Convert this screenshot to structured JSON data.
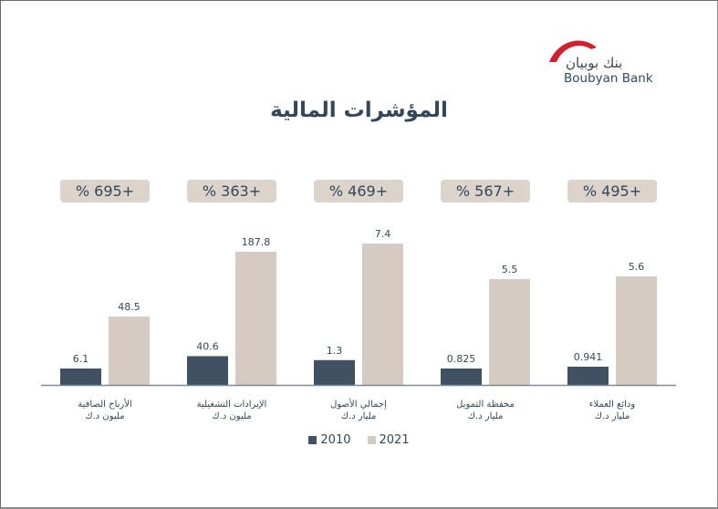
{
  "brand": {
    "name_ar": "بنك بوبيان",
    "name_en": "Boubyan Bank",
    "accent_color": "#d3202e"
  },
  "title": "المؤشرات المالية",
  "colors": {
    "series_2010": "#3f5163",
    "series_2021": "#d6cbc3",
    "badge_bg": "#dcd3cb",
    "text": "#34475a",
    "axis": "#7d8a96"
  },
  "legend": [
    {
      "label": "2010"
    },
    {
      "label": "2021"
    }
  ],
  "chart_data": {
    "type": "bar",
    "title": "المؤشرات المالية",
    "xlabel": "",
    "ylabel": "",
    "grid": false,
    "legend_position": "bottom",
    "categories": [
      {
        "name": "الأرباح الصافية",
        "unit": "مليون د.ك",
        "growth": "% 695+"
      },
      {
        "name": "الإيرادات التشغيلية",
        "unit": "مليون د.ك",
        "growth": "% 363+"
      },
      {
        "name": "إجمالي الأصول",
        "unit": "مليار د.ك",
        "growth": "% 469+"
      },
      {
        "name": "محفظة التمويل",
        "unit": "مليار د.ك",
        "growth": "% 567+"
      },
      {
        "name": "ودائع العملاء",
        "unit": "مليار د.ك",
        "growth": "% 495+"
      }
    ],
    "series": [
      {
        "name": "2010",
        "values": [
          6.1,
          40.6,
          1.3,
          0.825,
          0.941
        ],
        "labels": [
          "6.1",
          "40.6",
          "1.3",
          "0.825",
          "0.941"
        ]
      },
      {
        "name": "2021",
        "values": [
          48.5,
          187.8,
          7.4,
          5.5,
          5.6
        ],
        "labels": [
          "48.5",
          "187.8",
          "7.4",
          "5.5",
          "5.6"
        ]
      }
    ]
  }
}
